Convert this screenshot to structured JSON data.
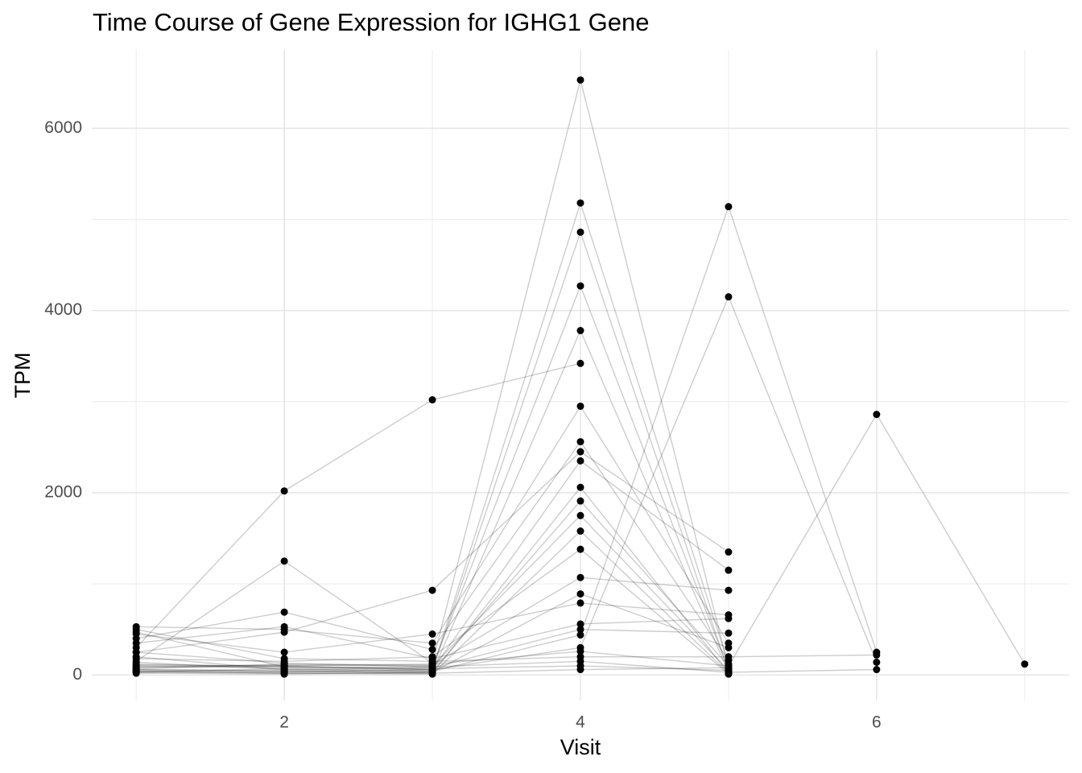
{
  "chart_data": {
    "type": "line",
    "title": "Time Course of Gene Expression for IGHG1 Gene",
    "x_label": "Visit",
    "y_label": "TPM",
    "x": [
      1,
      2,
      3,
      4,
      5,
      6,
      7
    ],
    "xlim": [
      0.7,
      7.3
    ],
    "xticks": [
      2,
      4,
      6
    ],
    "ylim": [
      -280,
      6860
    ],
    "yticks": [
      0,
      2000,
      4000,
      6000
    ],
    "grid": true,
    "line_color": "#000000",
    "line_opacity": 0.2,
    "point_color": "#000000",
    "series": [
      {
        "values": [
          300,
          2020,
          3020,
          3420,
          null,
          null,
          null
        ]
      },
      {
        "values": [
          150,
          1250,
          130,
          6530,
          80,
          null,
          null
        ]
      },
      {
        "values": [
          80,
          100,
          60,
          5180,
          120,
          null,
          null
        ]
      },
      {
        "values": [
          200,
          60,
          50,
          4860,
          40,
          null,
          null
        ]
      },
      {
        "values": [
          100,
          80,
          90,
          4270,
          60,
          null,
          null
        ]
      },
      {
        "values": [
          50,
          40,
          30,
          3780,
          30,
          null,
          null
        ]
      },
      {
        "values": [
          530,
          500,
          350,
          2950,
          350,
          null,
          null
        ]
      },
      {
        "values": [
          400,
          690,
          280,
          2560,
          160,
          null,
          null
        ]
      },
      {
        "values": [
          250,
          470,
          930,
          2450,
          1350,
          null,
          null
        ]
      },
      {
        "values": [
          120,
          90,
          60,
          2350,
          1150,
          null,
          null
        ]
      },
      {
        "values": [
          60,
          50,
          20,
          2060,
          20,
          null,
          null
        ]
      },
      {
        "values": [
          30,
          30,
          40,
          1910,
          100,
          null,
          null
        ]
      },
      {
        "values": [
          90,
          110,
          100,
          1750,
          50,
          null,
          null
        ]
      },
      {
        "values": [
          40,
          20,
          10,
          1580,
          20,
          null,
          null
        ]
      },
      {
        "values": [
          180,
          150,
          200,
          1380,
          10,
          null,
          null
        ]
      },
      {
        "values": [
          70,
          120,
          110,
          1070,
          930,
          null,
          null
        ]
      },
      {
        "values": [
          20,
          10,
          30,
          890,
          300,
          null,
          null
        ]
      },
      {
        "values": [
          450,
          250,
          450,
          790,
          660,
          null,
          null
        ]
      },
      {
        "values": [
          350,
          530,
          180,
          560,
          620,
          null,
          null
        ]
      },
      {
        "values": [
          140,
          60,
          80,
          500,
          460,
          null,
          null
        ]
      },
      {
        "values": [
          30,
          70,
          40,
          440,
          5140,
          250,
          null
        ]
      },
      {
        "values": [
          60,
          40,
          60,
          300,
          4150,
          140,
          null
        ]
      },
      {
        "values": [
          110,
          100,
          120,
          260,
          100,
          2860,
          120
        ]
      },
      {
        "values": [
          500,
          180,
          150,
          200,
          200,
          220,
          null
        ]
      },
      {
        "values": [
          250,
          130,
          90,
          150,
          30,
          60,
          null
        ]
      },
      {
        "values": [
          40,
          20,
          20,
          60,
          80,
          null,
          null
        ]
      },
      {
        "values": [
          470,
          90,
          70,
          100,
          50,
          null,
          null
        ]
      }
    ]
  }
}
